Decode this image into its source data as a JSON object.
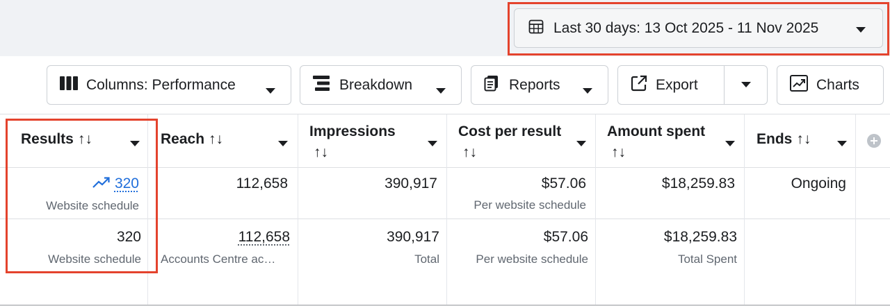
{
  "date_range": {
    "label": "Last 30 days: 13 Oct 2025 - 11 Nov 2025"
  },
  "toolbar": {
    "columns_label": "Columns: Performance",
    "breakdown_label": "Breakdown",
    "reports_label": "Reports",
    "export_label": "Export",
    "charts_label": "Charts"
  },
  "table": {
    "sort_glyph": "↑↓",
    "headers": {
      "results": "Results",
      "reach": "Reach",
      "impressions": "Impressions",
      "cost_per_result": "Cost per result",
      "amount_spent": "Amount spent",
      "ends": "Ends"
    },
    "row1": {
      "results": "320",
      "results_sub": "Website schedule",
      "reach": "112,658",
      "impressions": "390,917",
      "cost_per_result": "$57.06",
      "cost_per_result_sub": "Per website schedule",
      "amount_spent": "$18,259.83",
      "ends": "Ongoing"
    },
    "row2": {
      "results": "320",
      "results_sub": "Website schedule",
      "reach": "112,658",
      "reach_sub": "Accounts Centre ac…",
      "impressions": "390,917",
      "impressions_sub": "Total",
      "cost_per_result": "$57.06",
      "cost_per_result_sub": "Per website schedule",
      "amount_spent": "$18,259.83",
      "amount_spent_sub": "Total Spent"
    }
  },
  "colors": {
    "accent_link": "#216fdb",
    "highlight": "#e4432d"
  }
}
